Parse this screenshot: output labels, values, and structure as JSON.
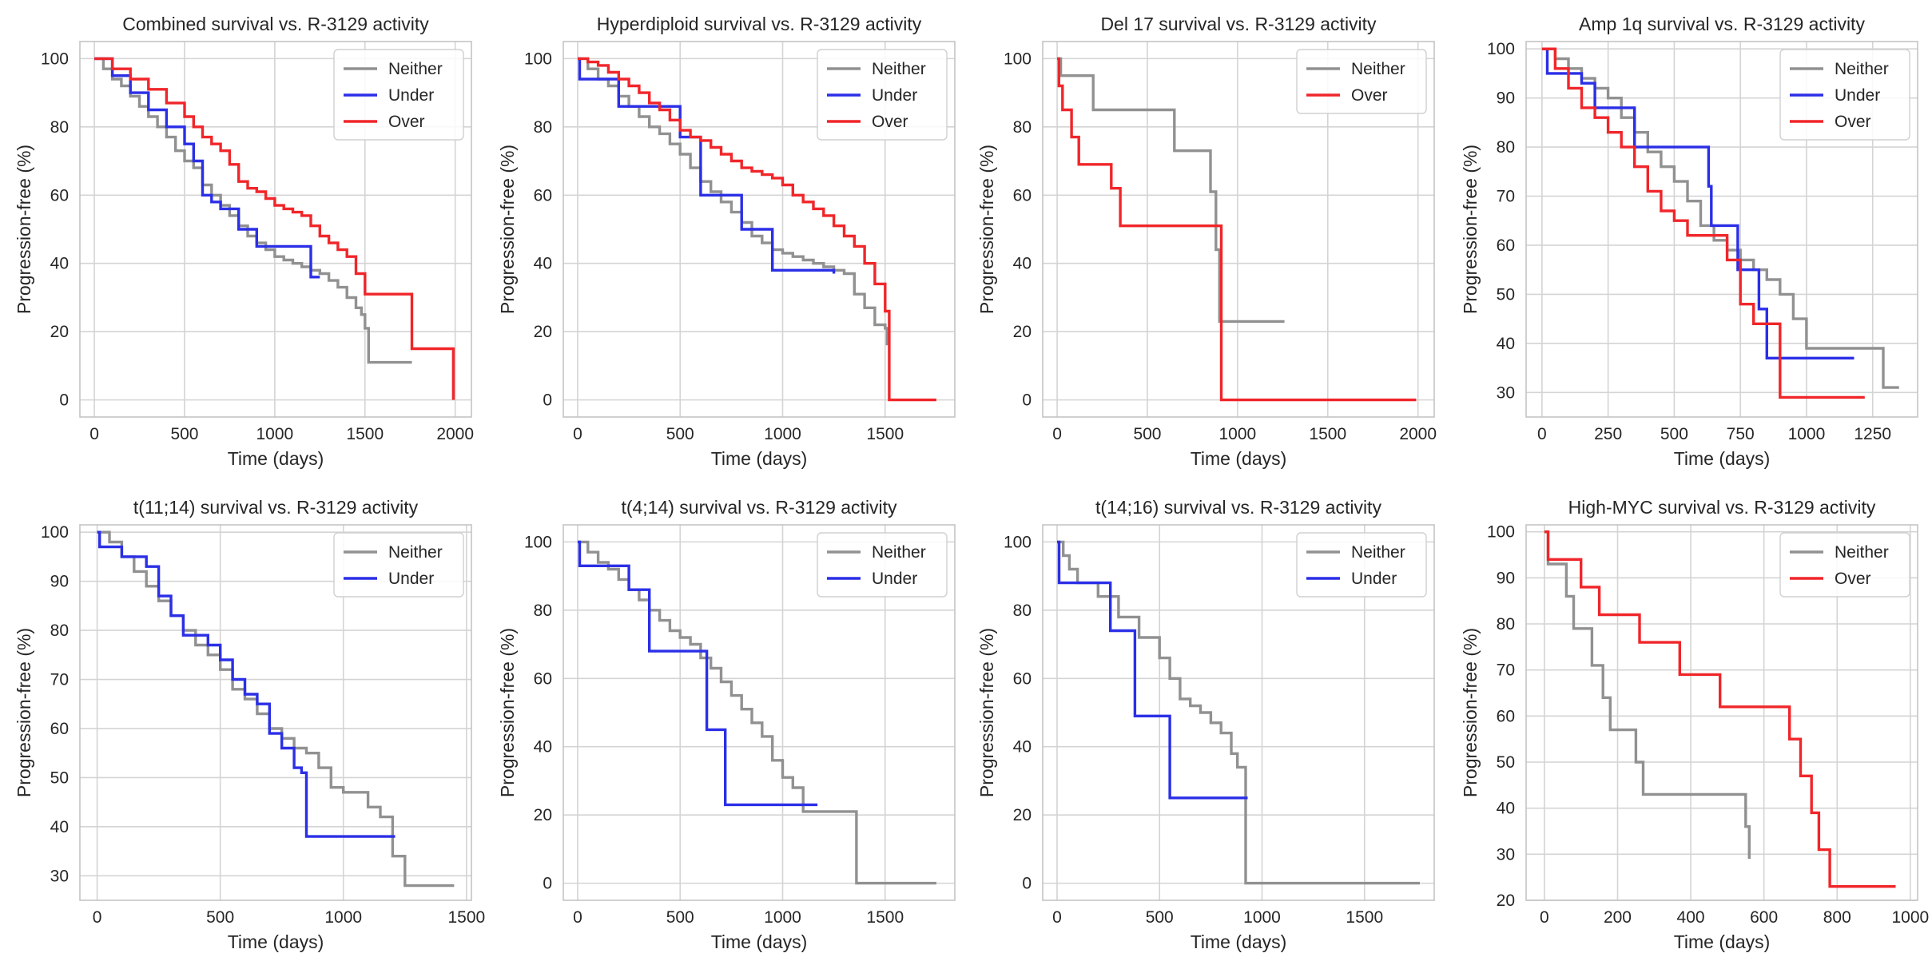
{
  "figure": {
    "title": "",
    "colors": {
      "Neither": "#919191",
      "Under": "#2b2fe6",
      "Over": "#f0262a",
      "grid": "#d4d4d4",
      "frame": "#c4c4c4"
    }
  },
  "chart_data": [
    {
      "type": "line",
      "title": "Combined survival vs. R-3129 activity",
      "xlabel": "Time (days)",
      "ylabel": "Progression-free (%)",
      "xlim": [
        -80,
        2090
      ],
      "ylim": [
        -5,
        105
      ],
      "xticks": [
        0,
        500,
        1000,
        1500,
        2000
      ],
      "yticks": [
        0,
        20,
        40,
        60,
        80,
        100
      ],
      "grid": true,
      "legend": "top-right",
      "series": [
        {
          "name": "Neither",
          "x": [
            0,
            50,
            100,
            150,
            200,
            250,
            300,
            350,
            400,
            450,
            500,
            550,
            600,
            650,
            700,
            750,
            800,
            850,
            900,
            950,
            1000,
            1050,
            1100,
            1150,
            1200,
            1250,
            1300,
            1350,
            1400,
            1450,
            1480,
            1500,
            1520,
            1760
          ],
          "y": [
            100,
            97,
            94,
            92,
            89,
            86,
            83,
            80,
            77,
            73,
            70,
            68,
            63,
            60,
            57,
            54,
            51,
            48,
            46,
            44,
            42,
            41,
            40,
            39,
            38,
            37,
            35,
            33,
            30,
            27,
            25,
            21,
            11,
            11
          ]
        },
        {
          "name": "Under",
          "x": [
            0,
            100,
            200,
            300,
            400,
            500,
            550,
            600,
            650,
            700,
            800,
            900,
            950,
            1100,
            1200,
            1250
          ],
          "y": [
            100,
            95,
            90,
            85,
            80,
            75,
            70,
            60,
            58,
            56,
            50,
            45,
            45,
            45,
            36,
            36
          ]
        },
        {
          "name": "Over",
          "x": [
            0,
            100,
            200,
            300,
            400,
            500,
            550,
            600,
            650,
            700,
            750,
            800,
            850,
            900,
            950,
            1000,
            1050,
            1100,
            1150,
            1200,
            1250,
            1300,
            1350,
            1400,
            1450,
            1500,
            1760,
            1990
          ],
          "y": [
            100,
            97,
            94,
            91,
            87,
            83,
            80,
            77,
            75,
            73,
            69,
            64,
            62,
            61,
            59,
            57,
            56,
            55,
            54,
            51,
            48,
            46,
            44,
            42,
            37,
            31,
            15,
            0
          ]
        }
      ]
    },
    {
      "type": "line",
      "title": "Hyperdiploid survival vs. R-3129 activity",
      "xlabel": "Time (days)",
      "ylabel": "Progression-free (%)",
      "xlim": [
        -70,
        1840
      ],
      "ylim": [
        -5,
        105
      ],
      "xticks": [
        0,
        500,
        1000,
        1500
      ],
      "yticks": [
        0,
        20,
        40,
        60,
        80,
        100
      ],
      "grid": true,
      "legend": "top-right",
      "series": [
        {
          "name": "Neither",
          "x": [
            0,
            50,
            100,
            150,
            200,
            250,
            300,
            350,
            400,
            450,
            500,
            550,
            600,
            650,
            700,
            750,
            800,
            850,
            900,
            950,
            1000,
            1050,
            1100,
            1150,
            1200,
            1250,
            1300,
            1350,
            1400,
            1450,
            1500,
            1510
          ],
          "y": [
            100,
            97,
            94,
            92,
            89,
            86,
            83,
            80,
            78,
            75,
            72,
            68,
            64,
            61,
            58,
            55,
            52,
            48,
            46,
            44,
            43,
            42,
            41,
            40,
            39,
            38,
            37,
            31,
            27,
            22,
            21,
            16
          ]
        },
        {
          "name": "Under",
          "x": [
            0,
            10,
            200,
            500,
            600,
            800,
            950,
            1250
          ],
          "y": [
            100,
            94,
            86,
            77,
            60,
            50,
            38,
            37
          ]
        },
        {
          "name": "Over",
          "x": [
            0,
            50,
            100,
            150,
            200,
            250,
            300,
            350,
            400,
            450,
            500,
            550,
            600,
            650,
            700,
            750,
            800,
            850,
            900,
            950,
            1000,
            1050,
            1100,
            1150,
            1200,
            1250,
            1300,
            1350,
            1400,
            1450,
            1500,
            1520,
            1750
          ],
          "y": [
            100,
            99,
            98,
            96,
            94,
            92,
            90,
            87,
            85,
            82,
            79,
            77,
            76,
            74,
            72,
            70,
            68,
            67,
            66,
            65,
            63,
            60,
            58,
            56,
            54,
            51,
            48,
            45,
            40,
            34,
            26,
            0,
            0
          ]
        }
      ]
    },
    {
      "type": "line",
      "title": "Del 17 survival vs. R-3129 activity",
      "xlabel": "Time (days)",
      "ylabel": "Progression-free (%)",
      "xlim": [
        -80,
        2090
      ],
      "ylim": [
        -5,
        105
      ],
      "xticks": [
        0,
        500,
        1000,
        1500,
        2000
      ],
      "yticks": [
        0,
        20,
        40,
        60,
        80,
        100
      ],
      "grid": true,
      "legend": "top-right",
      "series": [
        {
          "name": "Neither",
          "x": [
            0,
            20,
            150,
            200,
            600,
            650,
            700,
            850,
            880,
            900,
            1260
          ],
          "y": [
            100,
            95,
            95,
            85,
            85,
            73,
            73,
            61,
            44,
            23,
            23
          ]
        },
        {
          "name": "Over",
          "x": [
            0,
            10,
            30,
            80,
            120,
            300,
            350,
            700,
            900,
            910,
            1990
          ],
          "y": [
            100,
            92,
            85,
            77,
            69,
            62,
            51,
            51,
            51,
            0,
            0
          ]
        }
      ]
    },
    {
      "type": "line",
      "title": "Amp 1q survival vs. R-3129 activity",
      "xlabel": "Time (days)",
      "ylabel": "Progression-free (%)",
      "xlim": [
        -60,
        1420
      ],
      "ylim": [
        25,
        101.5
      ],
      "xticks": [
        0,
        250,
        500,
        750,
        1000,
        1250
      ],
      "yticks": [
        30,
        40,
        50,
        60,
        70,
        80,
        90,
        100
      ],
      "grid": true,
      "legend": "top-right",
      "series": [
        {
          "name": "Neither",
          "x": [
            0,
            50,
            100,
            150,
            200,
            250,
            300,
            350,
            400,
            450,
            500,
            550,
            600,
            650,
            700,
            750,
            800,
            850,
            900,
            950,
            1000,
            1100,
            1200,
            1270,
            1290,
            1350
          ],
          "y": [
            100,
            98,
            96,
            94,
            92,
            90,
            86,
            83,
            79,
            76,
            73,
            69,
            64,
            61,
            59,
            57,
            55,
            53,
            50,
            45,
            39,
            39,
            39,
            39,
            31,
            31
          ]
        },
        {
          "name": "Under",
          "x": [
            0,
            20,
            150,
            200,
            300,
            350,
            500,
            600,
            630,
            640,
            740,
            820,
            850,
            1180
          ],
          "y": [
            100,
            95,
            93,
            88,
            88,
            80,
            80,
            80,
            72,
            64,
            55,
            47,
            37,
            37
          ]
        },
        {
          "name": "Over",
          "x": [
            0,
            50,
            100,
            150,
            200,
            250,
            300,
            350,
            400,
            450,
            500,
            550,
            600,
            650,
            700,
            750,
            800,
            850,
            900,
            1220
          ],
          "y": [
            100,
            96,
            92,
            88,
            86,
            83,
            80,
            76,
            71,
            67,
            65,
            62,
            62,
            62,
            57,
            48,
            44,
            44,
            29,
            29
          ]
        }
      ]
    },
    {
      "type": "line",
      "title": "t(11;14) survival vs. R-3129 activity",
      "xlabel": "Time (days)",
      "ylabel": "Progression-free (%)",
      "xlim": [
        -70,
        1520
      ],
      "ylim": [
        25,
        101.5
      ],
      "xticks": [
        0,
        500,
        1000,
        1500
      ],
      "yticks": [
        30,
        40,
        50,
        60,
        70,
        80,
        90,
        100
      ],
      "grid": true,
      "legend": "top-right",
      "series": [
        {
          "name": "Neither",
          "x": [
            0,
            50,
            100,
            150,
            200,
            250,
            300,
            350,
            400,
            450,
            500,
            550,
            600,
            650,
            700,
            750,
            800,
            850,
            900,
            950,
            1000,
            1050,
            1100,
            1150,
            1200,
            1250,
            1300,
            1450
          ],
          "y": [
            100,
            98,
            95,
            92,
            89,
            86,
            83,
            80,
            77,
            75,
            72,
            68,
            66,
            63,
            60,
            58,
            56,
            55,
            52,
            48,
            47,
            47,
            44,
            42,
            34,
            28,
            28,
            28
          ]
        },
        {
          "name": "Under",
          "x": [
            0,
            10,
            100,
            200,
            250,
            300,
            350,
            450,
            500,
            550,
            600,
            650,
            700,
            750,
            800,
            830,
            850,
            1210
          ],
          "y": [
            100,
            97,
            95,
            93,
            87,
            83,
            79,
            77,
            74,
            70,
            67,
            65,
            59,
            56,
            52,
            51,
            38,
            38
          ]
        }
      ]
    },
    {
      "type": "line",
      "title": "t(4;14) survival vs. R-3129 activity",
      "xlabel": "Time (days)",
      "ylabel": "Progression-free (%)",
      "xlim": [
        -70,
        1840
      ],
      "ylim": [
        -5,
        105
      ],
      "xticks": [
        0,
        500,
        1000,
        1500
      ],
      "yticks": [
        0,
        20,
        40,
        60,
        80,
        100
      ],
      "grid": true,
      "legend": "top-right",
      "series": [
        {
          "name": "Neither",
          "x": [
            0,
            50,
            100,
            150,
            200,
            250,
            300,
            350,
            400,
            450,
            500,
            550,
            600,
            650,
            700,
            750,
            800,
            850,
            900,
            950,
            1000,
            1050,
            1100,
            1350,
            1360,
            1750
          ],
          "y": [
            100,
            97,
            94,
            92,
            89,
            86,
            83,
            80,
            77,
            74,
            72,
            70,
            66,
            63,
            59,
            55,
            51,
            47,
            43,
            36,
            31,
            28,
            21,
            21,
            0,
            0
          ]
        },
        {
          "name": "Under",
          "x": [
            0,
            10,
            250,
            350,
            600,
            630,
            720,
            1170
          ],
          "y": [
            100,
            93,
            86,
            68,
            68,
            45,
            23,
            23
          ]
        }
      ]
    },
    {
      "type": "line",
      "title": "t(14;16) survival vs. R-3129 activity",
      "xlabel": "Time (days)",
      "ylabel": "Progression-free (%)",
      "xlim": [
        -70,
        1840
      ],
      "ylim": [
        -5,
        105
      ],
      "xticks": [
        0,
        500,
        1000,
        1500
      ],
      "yticks": [
        0,
        20,
        40,
        60,
        80,
        100
      ],
      "grid": true,
      "legend": "top-right",
      "series": [
        {
          "name": "Neither",
          "x": [
            0,
            30,
            60,
            100,
            200,
            300,
            400,
            500,
            550,
            600,
            650,
            700,
            750,
            800,
            850,
            880,
            920,
            1770
          ],
          "y": [
            100,
            96,
            92,
            88,
            84,
            78,
            72,
            66,
            60,
            54,
            52,
            50,
            47,
            44,
            38,
            34,
            0,
            0
          ]
        },
        {
          "name": "Under",
          "x": [
            0,
            10,
            260,
            380,
            550,
            930
          ],
          "y": [
            100,
            88,
            74,
            49,
            25,
            25
          ]
        }
      ]
    },
    {
      "type": "line",
      "title": "High-MYC survival vs. R-3129 activity",
      "xlabel": "Time (days)",
      "ylabel": "Progression-free (%)",
      "xlim": [
        -50,
        1020
      ],
      "ylim": [
        20,
        101.5
      ],
      "xticks": [
        0,
        200,
        400,
        600,
        800,
        1000
      ],
      "yticks": [
        20,
        30,
        40,
        50,
        60,
        70,
        80,
        90,
        100
      ],
      "grid": true,
      "legend": "top-right",
      "series": [
        {
          "name": "Neither",
          "x": [
            0,
            10,
            60,
            80,
            130,
            160,
            180,
            250,
            270,
            500,
            550,
            560
          ],
          "y": [
            100,
            93,
            86,
            79,
            71,
            64,
            57,
            50,
            43,
            43,
            36,
            29
          ]
        },
        {
          "name": "Over",
          "x": [
            0,
            10,
            100,
            150,
            260,
            370,
            480,
            670,
            700,
            730,
            750,
            780,
            960
          ],
          "y": [
            100,
            94,
            88,
            82,
            76,
            69,
            62,
            55,
            47,
            39,
            31,
            23,
            23
          ]
        }
      ]
    }
  ]
}
